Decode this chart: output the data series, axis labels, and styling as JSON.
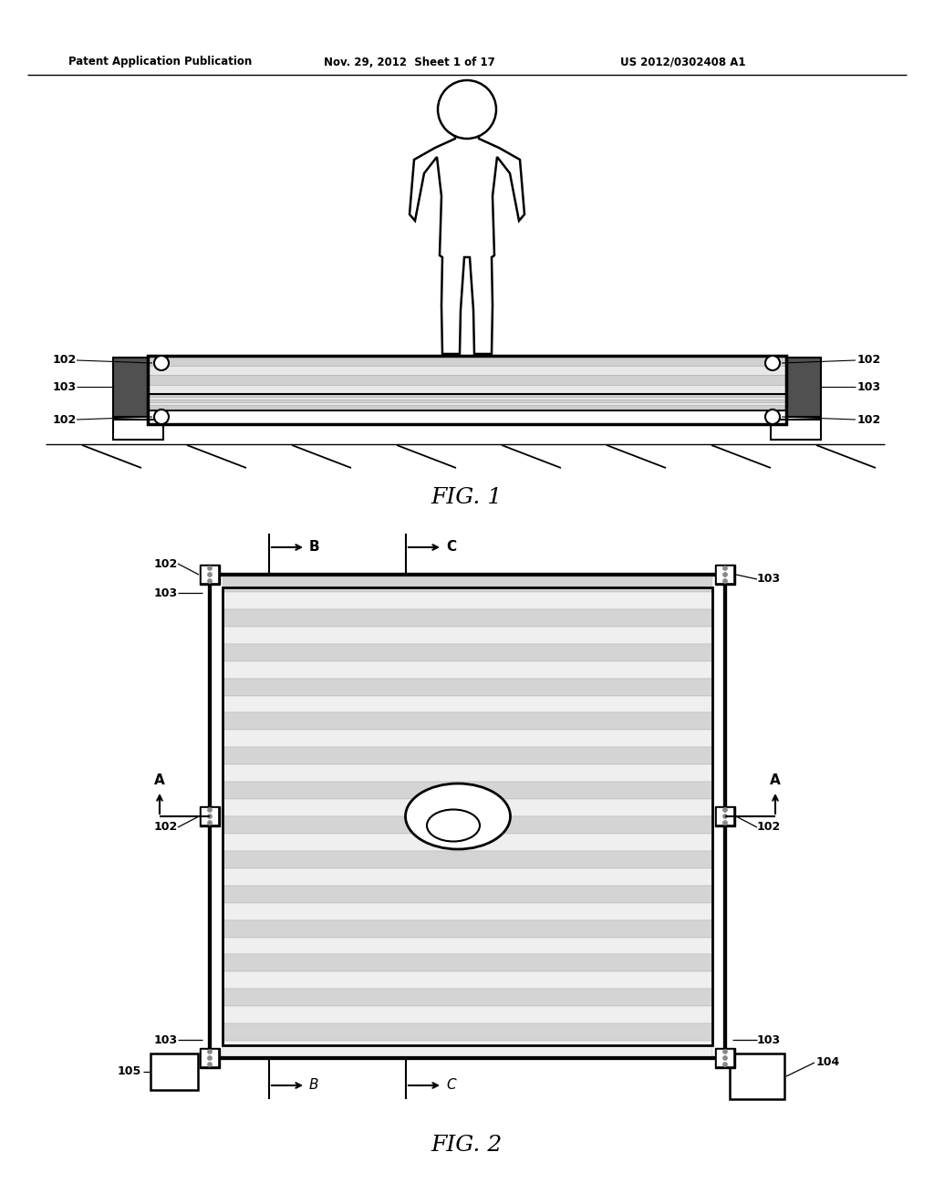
{
  "bg_color": "#ffffff",
  "header_text": "Patent Application Publication",
  "header_date": "Nov. 29, 2012  Sheet 1 of 17",
  "header_patent": "US 2012/0302408 A1",
  "fig1_label": "FIG. 1",
  "fig2_label": "FIG. 2",
  "lc": "#000000",
  "stripe_dark": "#c8c8c8",
  "stripe_light": "#e8e8e8",
  "stripe_dark2": "#d0d0d0",
  "stripe_light2": "#ebebeb"
}
